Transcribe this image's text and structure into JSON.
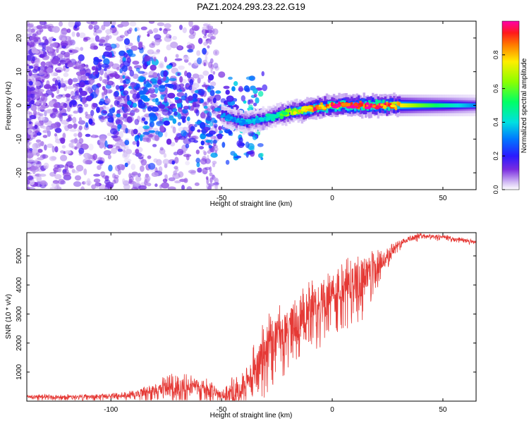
{
  "title": "PAZ1.2024.293.23.22.G19",
  "colors": {
    "snr_line": "#e53935",
    "axis": "#000000",
    "background": "#ffffff"
  },
  "chart_data": [
    {
      "type": "heatmap",
      "xlabel": "Height of straight line (km)",
      "ylabel": "Frequency (Hz)",
      "xlim": [
        -138,
        65
      ],
      "ylim": [
        -25,
        25
      ],
      "xticks": [
        -100,
        -50,
        0,
        50
      ],
      "yticks": [
        -20,
        -10,
        0,
        10,
        20
      ],
      "colorbar": {
        "label": "Normalized spectral amplitude",
        "range": [
          0.0,
          1.0
        ],
        "ticks": [
          "0.0",
          "0.2",
          "0.4",
          "0.6",
          "0.8"
        ]
      },
      "ridge": [
        {
          "x": -120,
          "y": 6,
          "amp": 0.15
        },
        {
          "x": -100,
          "y": 5,
          "amp": 0.25
        },
        {
          "x": -85,
          "y": 3,
          "amp": 0.3
        },
        {
          "x": -70,
          "y": 1,
          "amp": 0.3
        },
        {
          "x": -60,
          "y": -2,
          "amp": 0.3
        },
        {
          "x": -50,
          "y": -3,
          "amp": 0.3
        },
        {
          "x": -40,
          "y": -5,
          "amp": 0.35
        },
        {
          "x": -30,
          "y": -4,
          "amp": 0.4
        },
        {
          "x": -20,
          "y": -2,
          "amp": 0.6
        },
        {
          "x": -10,
          "y": -1,
          "amp": 0.8
        },
        {
          "x": 0,
          "y": 0,
          "amp": 0.9
        },
        {
          "x": 10,
          "y": 0,
          "amp": 0.95
        },
        {
          "x": 20,
          "y": 0,
          "amp": 0.95
        },
        {
          "x": 40,
          "y": 0,
          "amp": 0.6
        },
        {
          "x": 65,
          "y": 0,
          "amp": 0.3
        }
      ]
    },
    {
      "type": "line",
      "xlabel": "Height of straight line (km)",
      "ylabel": "SNR (10 * v/v)",
      "xlim": [
        -138,
        65
      ],
      "ylim": [
        0,
        5800
      ],
      "xticks": [
        -100,
        -50,
        0,
        50
      ],
      "yticks": [
        1000,
        2000,
        3000,
        4000,
        5000
      ],
      "envelope": {
        "x": [
          -138,
          -110,
          -95,
          -85,
          -75,
          -65,
          -55,
          -50,
          -45,
          -40,
          -35,
          -30,
          -25,
          -20,
          -15,
          -10,
          -5,
          0,
          5,
          10,
          15,
          20,
          25,
          30,
          35,
          40,
          50,
          60,
          65
        ],
        "mean": [
          150,
          150,
          200,
          300,
          500,
          550,
          400,
          200,
          300,
          500,
          1200,
          1800,
          2300,
          2600,
          2800,
          3200,
          3400,
          3700,
          3900,
          4100,
          4300,
          4600,
          5000,
          5400,
          5600,
          5700,
          5650,
          5550,
          5450
        ],
        "spread": [
          100,
          100,
          120,
          250,
          500,
          500,
          350,
          150,
          600,
          500,
          900,
          1200,
          1200,
          1200,
          1100,
          1100,
          1100,
          1000,
          1100,
          1200,
          1000,
          700,
          400,
          200,
          150,
          120,
          100,
          100,
          100
        ]
      }
    }
  ]
}
